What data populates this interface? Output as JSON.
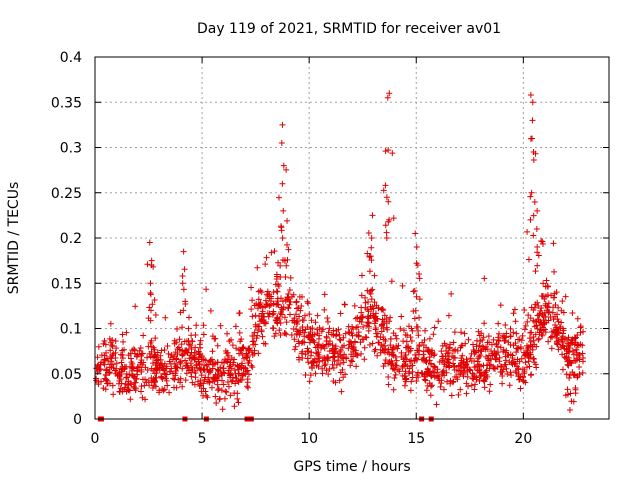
{
  "chart_data": {
    "type": "scatter",
    "title": "Day 119 of 2021, SRMTID for receiver av01",
    "xlabel": "GPS time / hours",
    "ylabel": "SRMTID / TECUs",
    "xlim": [
      0,
      24
    ],
    "ylim": [
      0,
      0.4
    ],
    "x_ticks": [
      0,
      5,
      10,
      15,
      20
    ],
    "y_ticks": [
      0,
      0.05,
      0.1,
      0.15,
      0.2,
      0.25,
      0.3,
      0.35,
      0.4
    ],
    "x_tick_labels": [
      "0",
      "5",
      "10",
      "15",
      "20"
    ],
    "y_tick_labels": [
      "0",
      "0.05",
      "0.1",
      "0.15",
      "0.2",
      "0.25",
      "0.3",
      "0.35",
      "0.4"
    ],
    "grid": true,
    "marker": "+",
    "color": "#e00000",
    "baseline": {
      "x": [
        0.0,
        0.5,
        1.0,
        1.5,
        2.0,
        2.5,
        3.0,
        3.5,
        4.0,
        4.5,
        5.0,
        5.5,
        6.0,
        6.5,
        7.0,
        7.5,
        8.0,
        8.5,
        9.0,
        9.5,
        10.0,
        10.5,
        11.0,
        11.5,
        12.0,
        12.5,
        13.0,
        13.5,
        14.0,
        14.5,
        15.0,
        15.5,
        16.0,
        16.5,
        17.0,
        17.5,
        18.0,
        18.5,
        19.0,
        19.5,
        20.0,
        20.5,
        21.0,
        21.5,
        22.0,
        22.5,
        23.0
      ],
      "y": [
        0.055,
        0.06,
        0.055,
        0.05,
        0.05,
        0.06,
        0.055,
        0.055,
        0.065,
        0.07,
        0.06,
        0.055,
        0.05,
        0.05,
        0.06,
        0.1,
        0.12,
        0.13,
        0.13,
        0.1,
        0.08,
        0.075,
        0.075,
        0.07,
        0.08,
        0.1,
        0.11,
        0.09,
        0.065,
        0.065,
        0.065,
        0.06,
        0.06,
        0.065,
        0.06,
        0.06,
        0.065,
        0.065,
        0.07,
        0.07,
        0.065,
        0.08,
        0.12,
        0.11,
        0.07,
        0.065,
        0.07
      ],
      "scatter": 0.025
    },
    "peaks": [
      {
        "x": 2.6,
        "values": [
          0.12,
          0.15,
          0.17,
          0.175,
          0.195
        ]
      },
      {
        "x": 4.15,
        "values": [
          0.13,
          0.15,
          0.185
        ]
      },
      {
        "x": 8.75,
        "values": [
          0.2,
          0.23,
          0.26,
          0.28,
          0.305,
          0.325
        ]
      },
      {
        "x": 13.7,
        "values": [
          0.2,
          0.22,
          0.24,
          0.245,
          0.355,
          0.36
        ]
      },
      {
        "x": 12.9,
        "values": [
          0.18,
          0.2,
          0.225
        ]
      },
      {
        "x": 15.0,
        "values": [
          0.17,
          0.19,
          0.205
        ]
      },
      {
        "x": 20.4,
        "values": [
          0.22,
          0.25,
          0.295,
          0.31,
          0.33,
          0.35,
          0.358
        ]
      },
      {
        "x": 20.7,
        "values": [
          0.19,
          0.21,
          0.23
        ]
      },
      {
        "x": 22.2,
        "values": [
          0.01
        ]
      }
    ],
    "zero_markers_x": [
      0.25,
      0.3,
      4.2,
      5.2,
      7.1,
      7.3,
      15.25,
      15.7
    ]
  }
}
